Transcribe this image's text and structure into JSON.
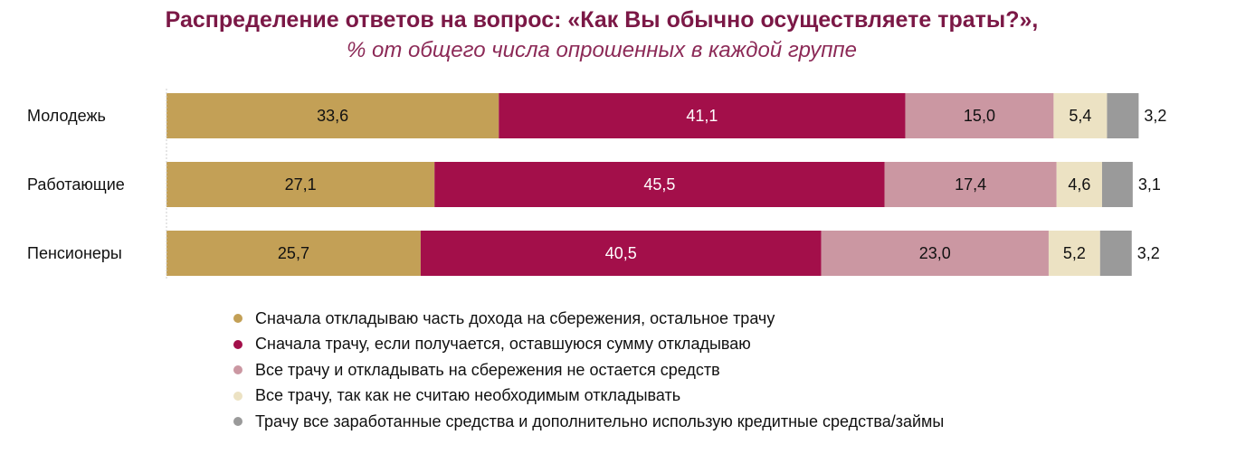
{
  "chart_data": {
    "type": "bar",
    "orientation": "horizontal-stacked",
    "title": "Распределение ответов на вопрос: «Как Вы обычно осуществляете траты?»,",
    "subtitle": "% от общего числа опрошенных в каждой группе",
    "categories": [
      "Молодежь",
      "Работающие",
      "Пенсионеры"
    ],
    "series": [
      {
        "name": "Сначала откладываю часть дохода на сбережения, остальное трачу",
        "color": "#C3A056",
        "label_color": "#111111",
        "values": [
          33.6,
          27.1,
          25.7
        ],
        "labels": [
          "33,6",
          "27,1",
          "25,7"
        ]
      },
      {
        "name": "Сначала трачу, если получается, оставшуюся сумму откладываю",
        "color": "#A30F4A",
        "label_color": "#ffffff",
        "values": [
          41.1,
          45.5,
          40.5
        ],
        "labels": [
          "41,1",
          "45,5",
          "40,5"
        ]
      },
      {
        "name": "Все трачу и откладывать на сбережения не остается средств",
        "color": "#CB97A2",
        "label_color": "#111111",
        "values": [
          15.0,
          17.4,
          23.0
        ],
        "labels": [
          "15,0",
          "17,4",
          "23,0"
        ]
      },
      {
        "name": "Все трачу, так как не считаю необходимым откладывать",
        "color": "#ECE2C3",
        "label_color": "#111111",
        "values": [
          5.4,
          4.6,
          5.2
        ],
        "labels": [
          "5,4",
          "4,6",
          "5,2"
        ]
      },
      {
        "name": "Трачу все заработанные средства и дополнительно использую кредитные средства/займы",
        "color": "#9A9A9A",
        "label_color": "#111111",
        "values": [
          3.2,
          3.1,
          3.2
        ],
        "labels": [
          "3,2",
          "3,1",
          "3,2"
        ],
        "label_outside": true
      }
    ],
    "legend_position": "bottom",
    "grid": false
  }
}
